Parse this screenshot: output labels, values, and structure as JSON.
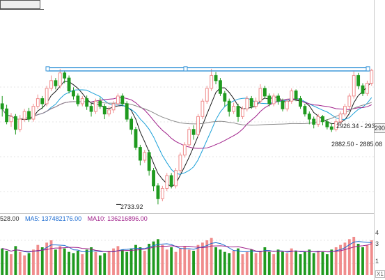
{
  "legend": {
    "vol_value": "528.00",
    "ma5_label": "MA5: 137482176.00",
    "ma10_label": "MA10: 136216896.00"
  },
  "annotations": {
    "low": "2733.92",
    "range1": "2926.34 - 293",
    "range2": "2882.50 - 2885.08"
  },
  "axis": {
    "price_flag": "290",
    "vol_ticks": [
      "4",
      "3",
      "1"
    ],
    "corner": "X1"
  },
  "colors": {
    "up": "#f08c8c",
    "down": "#1f9a1f",
    "ma5": "#1a1a1a",
    "ma10": "#1aa0d8",
    "ma20": "#a0208a",
    "ma60": "#8a8a8a",
    "trendline": "#3a96d8",
    "grid": "#e6e6e6"
  },
  "chart_data": {
    "type": "candlestick",
    "price_high_line": 2998,
    "low_mark": 2733.92,
    "candles": [
      [
        2930,
        2920,
        2945,
        2905
      ],
      [
        2920,
        2895,
        2928,
        2890
      ],
      [
        2895,
        2905,
        2912,
        2885
      ],
      [
        2905,
        2880,
        2910,
        2870
      ],
      [
        2880,
        2900,
        2908,
        2875
      ],
      [
        2900,
        2915,
        2920,
        2895
      ],
      [
        2915,
        2900,
        2922,
        2895
      ],
      [
        2900,
        2925,
        2930,
        2895
      ],
      [
        2925,
        2940,
        2948,
        2920
      ],
      [
        2940,
        2930,
        2945,
        2920
      ],
      [
        2930,
        2960,
        2965,
        2925
      ],
      [
        2960,
        2975,
        2985,
        2955
      ],
      [
        2975,
        2965,
        2980,
        2958
      ],
      [
        2965,
        2990,
        2998,
        2960
      ],
      [
        2990,
        2980,
        2995,
        2970
      ],
      [
        2980,
        2955,
        2985,
        2950
      ],
      [
        2955,
        2945,
        2962,
        2938
      ],
      [
        2945,
        2930,
        2950,
        2925
      ],
      [
        2930,
        2940,
        2945,
        2925
      ],
      [
        2940,
        2925,
        2946,
        2918
      ],
      [
        2925,
        2915,
        2930,
        2905
      ],
      [
        2915,
        2935,
        2940,
        2910
      ],
      [
        2935,
        2925,
        2942,
        2920
      ],
      [
        2925,
        2910,
        2930,
        2900
      ],
      [
        2910,
        2918,
        2925,
        2905
      ],
      [
        2918,
        2930,
        2935,
        2912
      ],
      [
        2930,
        2945,
        2950,
        2925
      ],
      [
        2945,
        2930,
        2950,
        2925
      ],
      [
        2930,
        2900,
        2935,
        2895
      ],
      [
        2900,
        2880,
        2905,
        2870
      ],
      [
        2880,
        2845,
        2885,
        2840
      ],
      [
        2845,
        2820,
        2850,
        2810
      ],
      [
        2820,
        2835,
        2840,
        2815
      ],
      [
        2835,
        2800,
        2840,
        2790
      ],
      [
        2800,
        2770,
        2805,
        2760
      ],
      [
        2770,
        2745,
        2775,
        2734
      ],
      [
        2745,
        2765,
        2770,
        2740
      ],
      [
        2765,
        2790,
        2795,
        2760
      ],
      [
        2790,
        2770,
        2795,
        2765
      ],
      [
        2770,
        2800,
        2805,
        2765
      ],
      [
        2800,
        2830,
        2835,
        2795
      ],
      [
        2830,
        2850,
        2855,
        2825
      ],
      [
        2850,
        2880,
        2885,
        2845
      ],
      [
        2880,
        2870,
        2888,
        2860
      ],
      [
        2870,
        2905,
        2910,
        2865
      ],
      [
        2905,
        2935,
        2940,
        2900
      ],
      [
        2935,
        2960,
        2965,
        2930
      ],
      [
        2960,
        2985,
        2998,
        2955
      ],
      [
        2985,
        2975,
        2992,
        2968
      ],
      [
        2975,
        2950,
        2980,
        2945
      ],
      [
        2950,
        2935,
        2955,
        2925
      ],
      [
        2935,
        2915,
        2940,
        2905
      ],
      [
        2915,
        2925,
        2932,
        2910
      ],
      [
        2925,
        2905,
        2930,
        2895
      ],
      [
        2905,
        2920,
        2925,
        2900
      ],
      [
        2920,
        2940,
        2945,
        2915
      ],
      [
        2940,
        2925,
        2945,
        2920
      ],
      [
        2925,
        2935,
        2942,
        2920
      ],
      [
        2935,
        2960,
        2968,
        2930
      ],
      [
        2960,
        2945,
        2965,
        2940
      ],
      [
        2945,
        2930,
        2950,
        2925
      ],
      [
        2930,
        2945,
        2950,
        2925
      ],
      [
        2945,
        2935,
        2950,
        2928
      ],
      [
        2935,
        2920,
        2940,
        2915
      ],
      [
        2920,
        2935,
        2940,
        2915
      ],
      [
        2935,
        2955,
        2960,
        2930
      ],
      [
        2955,
        2940,
        2958,
        2935
      ],
      [
        2940,
        2925,
        2945,
        2920
      ],
      [
        2925,
        2910,
        2930,
        2905
      ],
      [
        2910,
        2900,
        2915,
        2890
      ],
      [
        2900,
        2890,
        2905,
        2882
      ],
      [
        2890,
        2905,
        2910,
        2885
      ],
      [
        2905,
        2895,
        2908,
        2888
      ],
      [
        2895,
        2885,
        2900,
        2880
      ],
      [
        2885,
        2880,
        2892,
        2875
      ],
      [
        2880,
        2895,
        2900,
        2876
      ],
      [
        2895,
        2910,
        2915,
        2890
      ],
      [
        2910,
        2925,
        2930,
        2905
      ],
      [
        2925,
        2945,
        2950,
        2920
      ],
      [
        2945,
        2985,
        2995,
        2940
      ],
      [
        2985,
        2965,
        2990,
        2958
      ],
      [
        2965,
        2950,
        2970,
        2945
      ],
      [
        2950,
        2970,
        2975,
        2945
      ],
      [
        2970,
        2995,
        2998,
        2965
      ]
    ],
    "volumes": [
      2.3,
      2.1,
      1.8,
      2.5,
      2.0,
      1.7,
      1.9,
      2.2,
      2.6,
      2.4,
      2.8,
      3.0,
      2.2,
      2.5,
      2.3,
      2.0,
      1.9,
      2.1,
      1.8,
      2.2,
      2.4,
      2.0,
      1.7,
      1.9,
      2.1,
      2.3,
      2.5,
      2.2,
      2.0,
      2.3,
      2.6,
      2.4,
      2.1,
      2.7,
      2.9,
      3.1,
      2.6,
      2.2,
      2.4,
      2.0,
      2.3,
      2.5,
      2.2,
      2.1,
      2.6,
      2.8,
      3.0,
      3.2,
      2.4,
      2.2,
      2.0,
      1.9,
      2.1,
      2.3,
      1.8,
      2.0,
      2.2,
      1.9,
      2.1,
      2.4,
      2.0,
      1.8,
      2.2,
      2.0,
      1.9,
      2.3,
      2.1,
      1.8,
      2.0,
      2.2,
      1.9,
      2.1,
      2.0,
      1.8,
      2.2,
      2.4,
      2.6,
      2.8,
      3.1,
      3.3,
      2.7,
      2.4,
      2.6,
      3.0
    ]
  }
}
